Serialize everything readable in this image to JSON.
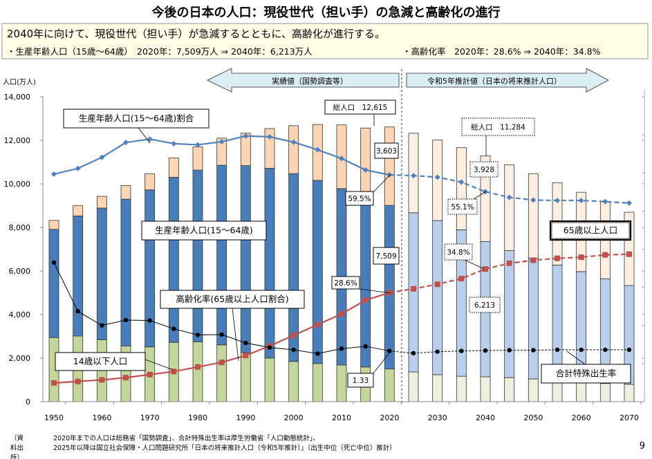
{
  "title": "今後の日本の人口：現役世代（担い手）の急減と高齢化の進行",
  "summary": {
    "headline": "2040年に向けて、現役世代（担い手）が急減するとともに、高齢化が進行する。",
    "working_age": "・生産年齢人口（15歳～64歳）　2020年：7,509万人 ⇒ 2040年：6,213万人",
    "aging": "・高齢化率　2020年：28.6% ⇒ 2040年：34.8%"
  },
  "arrows": {
    "actual": "実績値（国勢調査等）",
    "projected": "令和5年推計値（日本の将来推計人口）"
  },
  "callouts": {
    "total_2020": "総人口　12,615",
    "elderly_2020": "3,603",
    "ratio_2020": "59.5%",
    "working_2020": "7,509",
    "aging_2020": "28.6%",
    "tfr_2020": "1.33",
    "total_2040": "総人口　11,284",
    "elderly_2040": "3,928",
    "ratio_2040": "55.1%",
    "aging_2040": "34.8%",
    "working_2040": "6,213",
    "elderly_label": "65歳以上人口",
    "tfr_label": "合計特殊出生率",
    "ratio_label": "生産年齢人口(15～64歳)割合",
    "working_label": "生産年齢人口(15～64歳)",
    "aging_label": "高齢化率(65歳以上人口割合)",
    "young_label": "14歳以下人口"
  },
  "source": {
    "label": "（資料出所）",
    "line1": "2020年までの人口は総務省「国勢調査」、合計特殊出生率は厚生労働省「人口動態統計」、",
    "line2": "2025年以降は国立社会保障・人口問題研究所「日本の将来推計人口（令和5年推計）」（出生中位（死亡中位）推計）"
  },
  "page_number": "9",
  "chart_data": {
    "type": "bar",
    "stacked": true,
    "ylabel": "人口(万人)",
    "ylim": [
      0,
      14000
    ],
    "yticks": [
      "0",
      "2,000",
      "4,000",
      "6,000",
      "8,000",
      "10,000",
      "12,000",
      "14,000"
    ],
    "right_axis_percent_range": [
      0,
      80
    ],
    "right_axis_tfr_range": [
      0,
      8
    ],
    "x_tick_labels": [
      "1950",
      "1960",
      "1970",
      "1980",
      "1990",
      "2000",
      "2010",
      "2020",
      "2030",
      "2040",
      "2050",
      "2060",
      "2070"
    ],
    "years": [
      1950,
      1955,
      1960,
      1965,
      1970,
      1975,
      1980,
      1985,
      1990,
      1995,
      2000,
      2005,
      2010,
      2015,
      2020,
      2025,
      2030,
      2035,
      2040,
      2045,
      2050,
      2055,
      2060,
      2065,
      2070
    ],
    "projection_start": 2025,
    "series": [
      {
        "name": "14歳以下人口",
        "values": [
          2943,
          3012,
          2843,
          2553,
          2515,
          2722,
          2751,
          2603,
          2249,
          2001,
          1847,
          1752,
          1680,
          1589,
          1503,
          1363,
          1240,
          1169,
          1142,
          1103,
          1041,
          966,
          893,
          836,
          797
        ]
      },
      {
        "name": "生産年齢人口(15～64歳)",
        "values": [
          4966,
          5517,
          6047,
          6744,
          7212,
          7581,
          7883,
          8251,
          8590,
          8716,
          8622,
          8409,
          8103,
          7629,
          7509,
          7310,
          7076,
          6722,
          6213,
          5832,
          5540,
          5307,
          5078,
          4809,
          4535
        ]
      },
      {
        "name": "65歳以上人口",
        "values": [
          416,
          479,
          540,
          624,
          739,
          887,
          1065,
          1247,
          1489,
          1826,
          2204,
          2567,
          2925,
          3347,
          3603,
          3653,
          3696,
          3773,
          3928,
          3945,
          3888,
          3784,
          3644,
          3529,
          3367
        ]
      }
    ],
    "lines": [
      {
        "name": "生産年齢人口(15～64歳)割合",
        "unit": "%",
        "values": [
          59.7,
          61.2,
          64.1,
          68.0,
          68.9,
          67.7,
          67.4,
          68.2,
          69.7,
          69.5,
          68.1,
          66.1,
          63.8,
          60.8,
          59.5,
          59.3,
          58.9,
          57.6,
          55.1,
          53.6,
          52.9,
          52.8,
          52.8,
          52.5,
          52.1
        ]
      },
      {
        "name": "高齢化率(65歳以上人口割合)",
        "unit": "%",
        "values": [
          4.9,
          5.3,
          5.7,
          6.3,
          7.1,
          7.9,
          9.1,
          10.3,
          12.1,
          14.6,
          17.4,
          20.2,
          23.0,
          26.6,
          28.6,
          29.6,
          30.8,
          32.3,
          34.8,
          36.3,
          37.1,
          37.6,
          37.9,
          38.5,
          38.7
        ]
      },
      {
        "name": "合計特殊出生率",
        "unit": "",
        "values": [
          3.65,
          2.37,
          2.0,
          2.14,
          2.13,
          1.91,
          1.75,
          1.76,
          1.54,
          1.42,
          1.36,
          1.26,
          1.39,
          1.45,
          1.33,
          1.27,
          1.31,
          1.33,
          1.34,
          1.35,
          1.35,
          1.36,
          1.36,
          1.36,
          1.36
        ]
      }
    ],
    "colors": {
      "young": "#c3d69b",
      "young_proj": "#ebf1de",
      "working": "#4a7ebb",
      "working_proj": "#b9cfec",
      "elderly": "#fcd5b5",
      "elderly_proj": "#fdeee2",
      "ratio_line": "#4f81bd",
      "aging_line": "#c0504d",
      "tfr_line": "#000000"
    }
  }
}
